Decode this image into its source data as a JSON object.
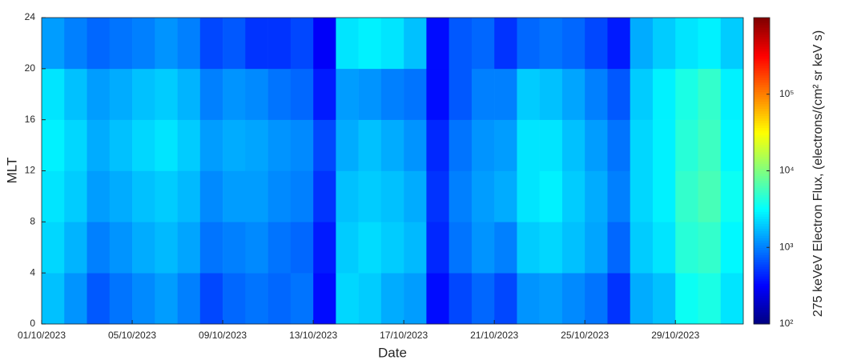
{
  "chart_data": {
    "type": "heatmap",
    "xlabel": "Date",
    "ylabel": "MLT",
    "colorbar_label": "275 keVeV Electron Flux, (electrons/(cm² sr keV s)",
    "colormap": "jet",
    "color_scale": "log",
    "x": [
      0,
      1,
      2,
      3,
      4,
      5,
      6,
      7,
      8,
      9,
      10,
      11,
      12,
      13,
      14,
      15,
      16,
      17,
      18,
      19,
      20,
      21,
      22,
      23,
      24,
      25,
      26,
      27,
      28,
      29,
      30,
      31
    ],
    "y": [
      0,
      4,
      8,
      12,
      16,
      20,
      24
    ],
    "xlim": [
      0,
      31
    ],
    "ylim": [
      0,
      24
    ],
    "clim": [
      100,
      1000000
    ],
    "xticks": [
      {
        "value": 0,
        "label": "01/10/2023"
      },
      {
        "value": 4,
        "label": "05/10/2023"
      },
      {
        "value": 8,
        "label": "09/10/2023"
      },
      {
        "value": 12,
        "label": "13/10/2023"
      },
      {
        "value": 16,
        "label": "17/10/2023"
      },
      {
        "value": 20,
        "label": "21/10/2023"
      },
      {
        "value": 24,
        "label": "25/10/2023"
      },
      {
        "value": 28,
        "label": "29/10/2023"
      }
    ],
    "yticks": [
      0,
      4,
      8,
      12,
      16,
      20,
      24
    ],
    "cticks": [
      {
        "value": 100,
        "label": "10²"
      },
      {
        "value": 1000,
        "label": "10³"
      },
      {
        "value": 10000,
        "label": "10⁴"
      },
      {
        "value": 100000,
        "label": "10⁵"
      }
    ],
    "values": [
      [
        1800,
        2200,
        2500,
        2800,
        2500,
        1300
      ],
      [
        1200,
        1600,
        2000,
        2200,
        1800,
        1000
      ],
      [
        700,
        1000,
        1300,
        1500,
        1300,
        800
      ],
      [
        900,
        1200,
        1500,
        1800,
        1500,
        900
      ],
      [
        1100,
        1500,
        1800,
        2200,
        1800,
        1000
      ],
      [
        1300,
        1700,
        2000,
        2500,
        2000,
        1200
      ],
      [
        1000,
        1400,
        1700,
        2000,
        1600,
        1000
      ],
      [
        600,
        900,
        1100,
        1300,
        1000,
        600
      ],
      [
        800,
        1000,
        1300,
        1500,
        1200,
        700
      ],
      [
        900,
        1100,
        1300,
        1400,
        1100,
        500
      ],
      [
        800,
        900,
        1100,
        1200,
        900,
        500
      ],
      [
        900,
        800,
        1000,
        1100,
        800,
        600
      ],
      [
        350,
        400,
        500,
        600,
        400,
        300
      ],
      [
        2200,
        2000,
        1800,
        1500,
        1300,
        2500
      ],
      [
        2000,
        2300,
        2000,
        1800,
        1200,
        2800
      ],
      [
        1500,
        2000,
        1800,
        1500,
        1000,
        2500
      ],
      [
        1300,
        1700,
        1500,
        1200,
        900,
        1800
      ],
      [
        350,
        450,
        500,
        450,
        350,
        350
      ],
      [
        600,
        900,
        1000,
        900,
        700,
        700
      ],
      [
        800,
        1200,
        1300,
        1200,
        1000,
        800
      ],
      [
        600,
        1000,
        1500,
        1300,
        1000,
        500
      ],
      [
        1200,
        2000,
        2500,
        2500,
        2000,
        800
      ],
      [
        1300,
        2200,
        2800,
        2500,
        1800,
        900
      ],
      [
        1100,
        1800,
        2000,
        1800,
        1400,
        800
      ],
      [
        900,
        1400,
        1500,
        1300,
        1000,
        600
      ],
      [
        500,
        800,
        1000,
        900,
        700,
        400
      ],
      [
        1500,
        2000,
        2200,
        2200,
        2000,
        1500
      ],
      [
        1800,
        2500,
        2800,
        2800,
        2800,
        2000
      ],
      [
        3500,
        4500,
        5000,
        4500,
        4000,
        2500
      ],
      [
        4000,
        5000,
        6000,
        5500,
        5000,
        2800
      ],
      [
        2500,
        3000,
        3500,
        3000,
        2800,
        2000
      ]
    ]
  }
}
